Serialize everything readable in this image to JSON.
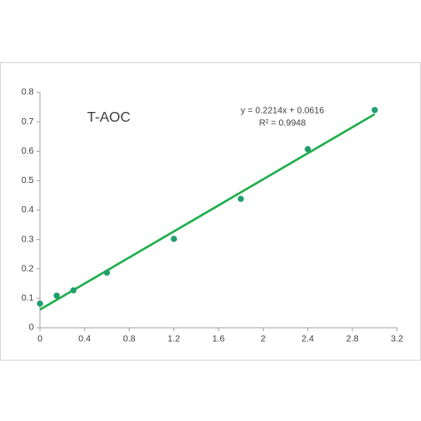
{
  "chart_data": {
    "type": "scatter",
    "annotations": [
      "T-AOC",
      "y = 0.2214x + 0.0616",
      "R² = 0.9948"
    ],
    "x": [
      0,
      0.15,
      0.3,
      0.6,
      1.2,
      1.8,
      2.4,
      3.0
    ],
    "values": [
      0.082,
      0.109,
      0.127,
      0.187,
      0.302,
      0.438,
      0.607,
      0.74
    ],
    "color": "#1f9e6e",
    "trendline": {
      "color": "#1fae4b",
      "x": [
        0,
        3.0
      ],
      "values": [
        0.0616,
        0.7258
      ]
    },
    "xlim": [
      0,
      3.2
    ],
    "xticks": [
      0,
      0.4,
      0.8,
      1.2,
      1.6,
      2,
      2.4,
      2.8,
      3.2
    ],
    "ylim": [
      0,
      0.8
    ],
    "yticks": [
      0,
      0.1,
      0.2,
      0.3,
      0.4,
      0.5,
      0.6,
      0.7,
      0.8
    ],
    "grid": false
  }
}
